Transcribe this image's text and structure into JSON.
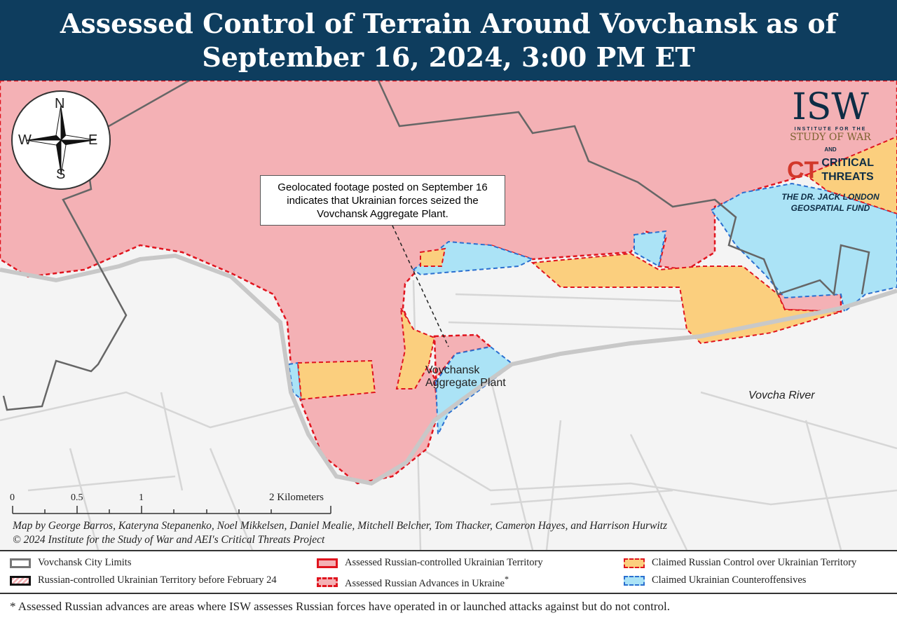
{
  "title": {
    "line1": "Assessed Control of Terrain Around Vovchansk as of",
    "line2": "September 16, 2024, 3:00 PM ET"
  },
  "map": {
    "callout": "Geolocated footage posted on September 16 indicates that Ukrainian forces seized the Vovchansk Aggregate Plant.",
    "labels": {
      "plant_line1": "Vovchansk",
      "plant_line2": "Aggregate Plant",
      "river": "Vovcha River"
    },
    "compass": {
      "n": "N",
      "s": "S",
      "e": "E",
      "w": "W"
    },
    "scale_bar": {
      "ticks": [
        "0",
        "0.5",
        "1",
        "2 Kilometers"
      ]
    },
    "credits": {
      "authors": "Map by George Barros, Kateryna Stepanenko, Noel Mikkelsen, Daniel Mealie, Mitchell Belcher, Tom Thacker, Cameron Hayes, and Harrison Hurwitz",
      "copyright": "© 2024 Institute for the Study of War and AEI's Critical Threats Project"
    },
    "colors": {
      "russian_controlled": "#f4b1b5",
      "border_red": "#e0141e",
      "claimed_russian": "#fbcf7e",
      "ukrainian_counter": "#abe3f6",
      "border_blue": "#2a6fd0",
      "city_limits": "#666666",
      "background": "#f4f4f4"
    }
  },
  "logo": {
    "isw": "ISW",
    "isw_sub1": "INSTITUTE FOR THE",
    "isw_sub2": "STUDY OF WAR",
    "and": "AND",
    "ct_line1": "CRITICAL",
    "ct_line2": "THREATS",
    "fund_line1": "THE DR. JACK LONDON",
    "fund_line2": "GEOSPATIAL FUND"
  },
  "legend": {
    "items": [
      {
        "label": "Vovchansk City Limits"
      },
      {
        "label": "Russian-controlled Ukrainian Territory before February 24"
      },
      {
        "label": "Assessed Russian-controlled Ukrainian Territory"
      },
      {
        "label": "Assessed Russian Advances in Ukraine",
        "suffix": "*"
      },
      {
        "label": "Claimed Russian Control over Ukrainian Territory"
      },
      {
        "label": "Claimed Ukrainian Counteroffensives"
      }
    ]
  },
  "footnote": "* Assessed Russian advances are areas where ISW assesses Russian forces have operated in or launched attacks against but do not control."
}
